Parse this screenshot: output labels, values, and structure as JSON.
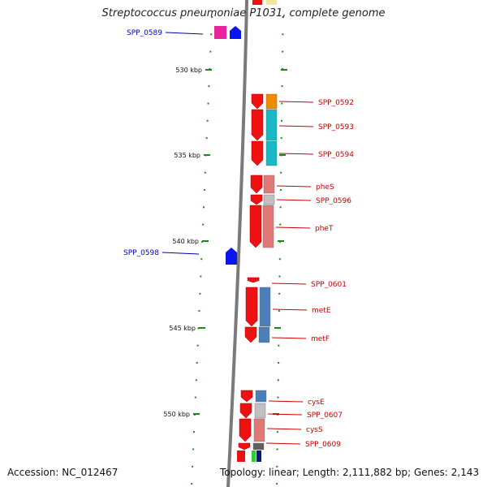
{
  "title": "Streptococcus pneumoniae P1031, complete genome",
  "accession": "Accession: NC_012467",
  "stats": "Topology: linear; Length: 2,111,882 bp; Genes: 2,143",
  "colors": {
    "backbone": "#7a7a7a",
    "tick": "#1a8a1a",
    "red_gene": "#ee1111",
    "red_label": "#cc0000",
    "blue_label": "#0000bb",
    "blue_gene": "#0a14ee"
  },
  "ticks": [
    {
      "kbp": 530,
      "label": "530 kbp"
    },
    {
      "kbp": 535,
      "label": "535 kbp"
    },
    {
      "kbp": 540,
      "label": "540 kbp"
    },
    {
      "kbp": 545,
      "label": "545 kbp"
    },
    {
      "kbp": 550,
      "label": "550 kbp"
    }
  ],
  "genes_left": [
    {
      "name": "SPP_0589",
      "color": "#0a14ee"
    },
    {
      "name": "SPP_0598",
      "color": "#0a14ee"
    }
  ],
  "genes_right": [
    {
      "name": "SPP_0592",
      "cog_color": "#f08a00"
    },
    {
      "name": "SPP_0593",
      "cog_color": "#1ab8c4"
    },
    {
      "name": "SPP_0594",
      "cog_color": "#1ab8c4"
    },
    {
      "name": "pheS",
      "cog_color": "#e07878"
    },
    {
      "name": "SPP_0596",
      "cog_color": "#c0c0c0"
    },
    {
      "name": "pheT",
      "cog_color": "#e07878"
    },
    {
      "name": "SPP_0601",
      "cog_color": ""
    },
    {
      "name": "metE",
      "cog_color": "#4a7fb8"
    },
    {
      "name": "metF",
      "cog_color": "#4a7fb8"
    },
    {
      "name": "cysE",
      "cog_color": "#4a7fb8"
    },
    {
      "name": "SPP_0607",
      "cog_color": "#c0c0c0"
    },
    {
      "name": "cysS",
      "cog_color": "#e07878"
    },
    {
      "name": "SPP_0609",
      "cog_color": "#606060"
    }
  ]
}
